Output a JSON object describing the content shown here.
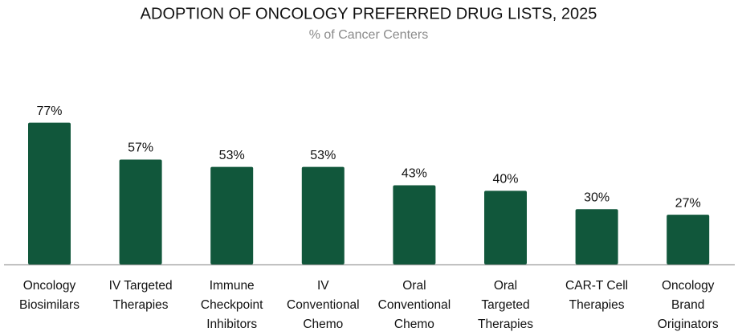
{
  "chart_data": {
    "type": "bar",
    "title": "ADOPTION OF ONCOLOGY PREFERRED DRUG LISTS, 2025",
    "subtitle": "% of Cancer Centers",
    "categories": [
      [
        "Oncology",
        "Biosimilars"
      ],
      [
        "IV Targeted",
        "Therapies"
      ],
      [
        "Immune",
        "Checkpoint",
        "Inhibitors"
      ],
      [
        "IV",
        "Conventional",
        "Chemo"
      ],
      [
        "Oral",
        "Conventional",
        "Chemo"
      ],
      [
        "Oral",
        "Targeted",
        "Therapies"
      ],
      [
        "CAR-T Cell",
        "Therapies"
      ],
      [
        "Oncology",
        "Brand",
        "Originators"
      ]
    ],
    "values": [
      77,
      57,
      53,
      53,
      43,
      40,
      30,
      27
    ],
    "value_labels": [
      "77%",
      "57%",
      "53%",
      "53%",
      "43%",
      "40%",
      "30%",
      "27%"
    ],
    "color": "#11573b"
  }
}
